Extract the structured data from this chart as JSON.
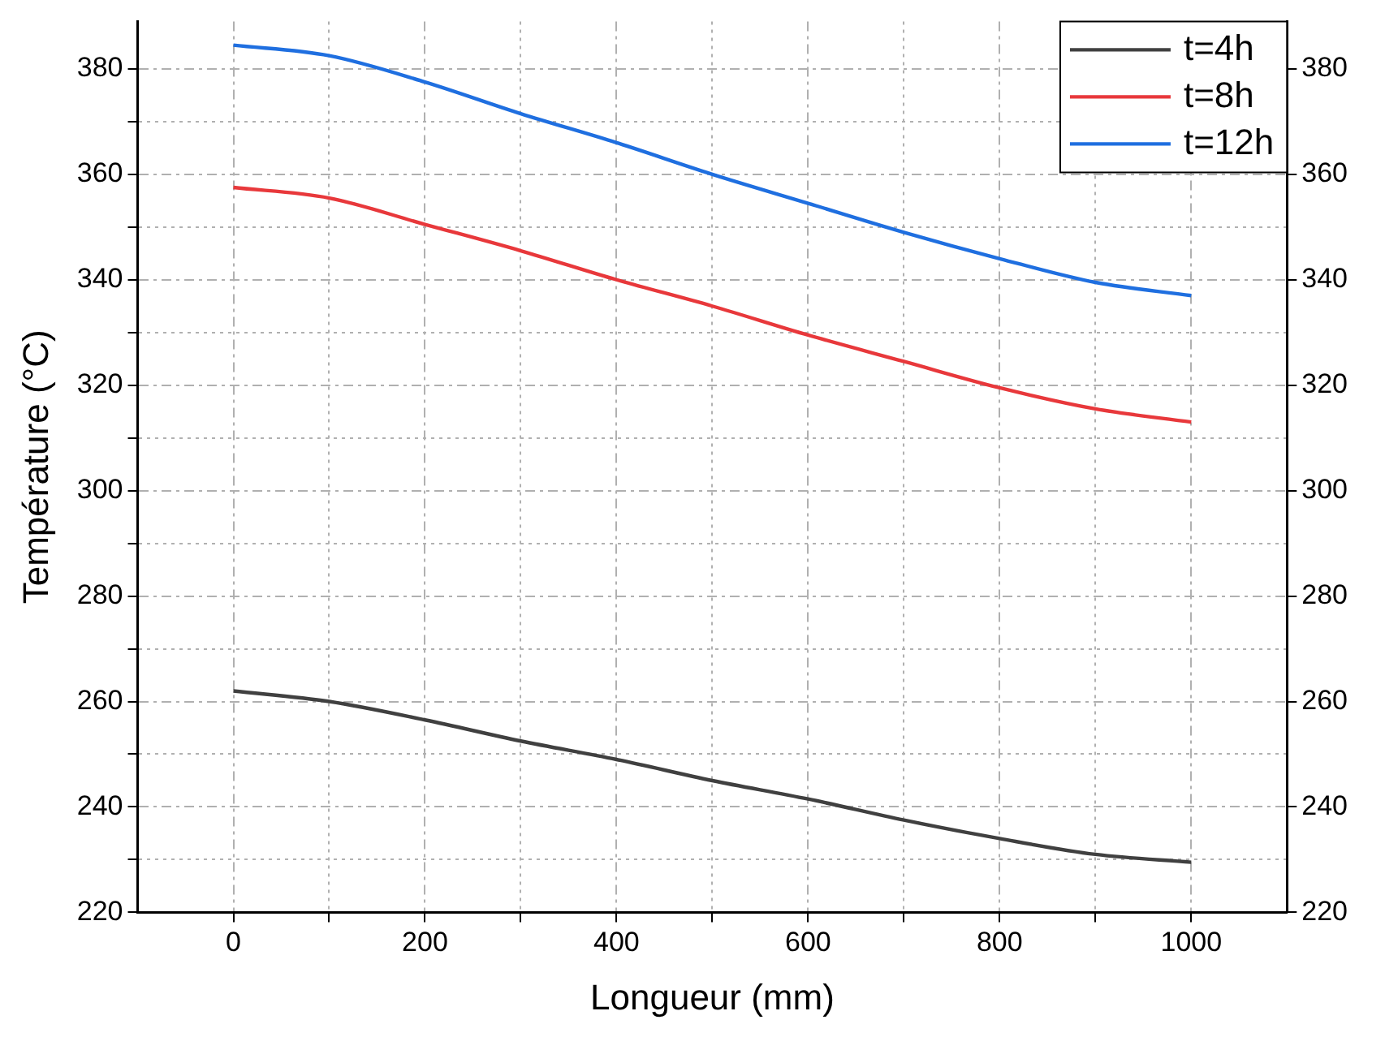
{
  "chart_data": {
    "type": "line",
    "xlabel": "Longueur (mm)",
    "ylabel": "Température (°C)",
    "x": [
      0,
      100,
      200,
      300,
      400,
      500,
      600,
      700,
      800,
      900,
      1000
    ],
    "series": [
      {
        "name": "t=4h",
        "color": "#404040",
        "values": [
          262,
          260,
          256.5,
          252.5,
          249,
          245,
          241.5,
          237.5,
          234,
          231,
          229.5
        ]
      },
      {
        "name": "t=8h",
        "color": "#e8383b",
        "values": [
          357.5,
          355.5,
          350.5,
          345.5,
          340,
          335,
          329.5,
          324.5,
          319.5,
          315.5,
          313
        ]
      },
      {
        "name": "t=12h",
        "color": "#1f6fe0",
        "values": [
          384.5,
          382.5,
          377.5,
          371.5,
          366,
          360,
          354.5,
          349,
          344,
          339.5,
          337
        ]
      }
    ],
    "xlim": [
      -100,
      1100
    ],
    "xticks": [
      0,
      {
        "value": 100,
        "label": null
      },
      200,
      {
        "value": 300,
        "label": null
      },
      400,
      {
        "value": 500,
        "label": null
      },
      600,
      {
        "value": 700,
        "label": null
      },
      800,
      {
        "value": 900,
        "label": null
      },
      1000
    ],
    "ylim": [
      220,
      389
    ],
    "yticks": [
      220,
      {
        "value": 230,
        "label": null
      },
      240,
      {
        "value": 250,
        "label": null
      },
      260,
      {
        "value": 270,
        "label": null
      },
      280,
      {
        "value": 290,
        "label": null
      },
      300,
      {
        "value": 310,
        "label": null
      },
      320,
      {
        "value": 330,
        "label": null
      },
      340,
      {
        "value": 350,
        "label": null
      },
      360,
      {
        "value": 370,
        "label": null
      },
      380
    ],
    "y2lim": [
      220,
      389
    ],
    "y2ticks": [
      220,
      240,
      260,
      280,
      300,
      320,
      340,
      360,
      380
    ],
    "grid": true,
    "legend": "top right",
    "marker": "none",
    "line_style": "solid"
  }
}
